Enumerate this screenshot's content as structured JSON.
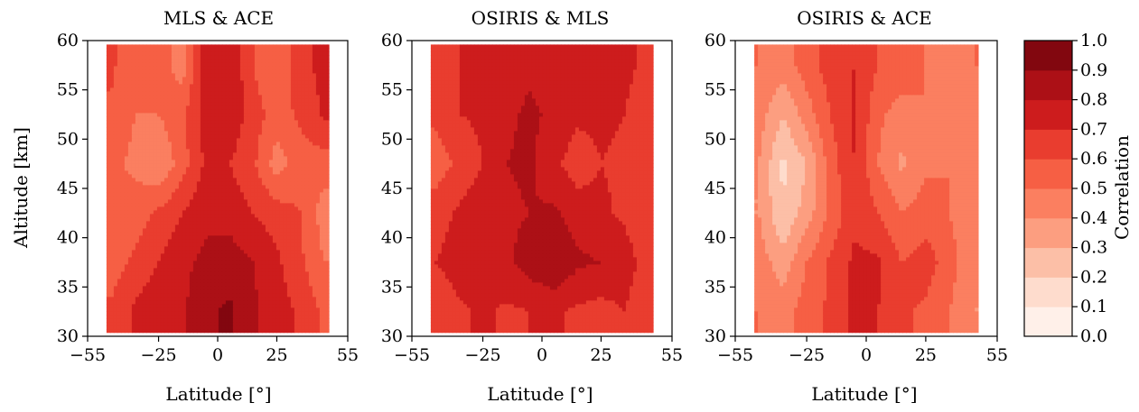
{
  "chart_data": [
    {
      "type": "heatmap",
      "title": "MLS & ACE",
      "xlabel": "Latitude [°]",
      "ylabel": "Altitude [km]",
      "xlim": [
        -55,
        55
      ],
      "ylim": [
        30,
        60
      ],
      "x_ticks": [
        "−55",
        "−25",
        "0",
        "25",
        "55"
      ],
      "y_ticks": [
        "30",
        "35",
        "40",
        "45",
        "50",
        "55",
        "60"
      ],
      "x": [
        -45,
        -35,
        -25,
        -15,
        -5,
        5,
        15,
        25,
        35,
        45
      ],
      "y": [
        32.5,
        37.5,
        42.5,
        47.5,
        52.5,
        57.5
      ],
      "z": [
        [
          0.62,
          0.72,
          0.78,
          0.78,
          0.88,
          0.92,
          0.82,
          0.75,
          0.68,
          0.58
        ],
        [
          0.55,
          0.62,
          0.7,
          0.78,
          0.82,
          0.85,
          0.8,
          0.72,
          0.62,
          0.5
        ],
        [
          0.5,
          0.55,
          0.62,
          0.7,
          0.78,
          0.76,
          0.7,
          0.65,
          0.6,
          0.45
        ],
        [
          0.52,
          0.48,
          0.4,
          0.55,
          0.72,
          0.7,
          0.62,
          0.45,
          0.55,
          0.55
        ],
        [
          0.58,
          0.5,
          0.5,
          0.58,
          0.75,
          0.78,
          0.65,
          0.55,
          0.62,
          0.72
        ],
        [
          0.62,
          0.52,
          0.55,
          0.45,
          0.75,
          0.8,
          0.6,
          0.5,
          0.68,
          0.72
        ]
      ]
    },
    {
      "type": "heatmap",
      "title": "OSIRIS & MLS",
      "xlabel": "Latitude [°]",
      "ylabel": "",
      "xlim": [
        -55,
        55
      ],
      "ylim": [
        30,
        60
      ],
      "x_ticks": [
        "−55",
        "−25",
        "0",
        "25",
        "55"
      ],
      "y_ticks": [
        "30",
        "35",
        "40",
        "45",
        "50",
        "55",
        "60"
      ],
      "x": [
        -45,
        -35,
        -25,
        -15,
        -5,
        5,
        15,
        25,
        35,
        45
      ],
      "y": [
        32.5,
        37.5,
        42.5,
        47.5,
        52.5,
        57.5
      ],
      "z": [
        [
          0.62,
          0.68,
          0.72,
          0.68,
          0.7,
          0.72,
          0.68,
          0.66,
          0.7,
          0.62
        ],
        [
          0.7,
          0.75,
          0.8,
          0.78,
          0.85,
          0.9,
          0.82,
          0.8,
          0.75,
          0.65
        ],
        [
          0.65,
          0.72,
          0.78,
          0.78,
          0.8,
          0.82,
          0.75,
          0.72,
          0.68,
          0.62
        ],
        [
          0.55,
          0.62,
          0.7,
          0.8,
          0.82,
          0.72,
          0.65,
          0.7,
          0.68,
          0.6
        ],
        [
          0.62,
          0.7,
          0.72,
          0.78,
          0.82,
          0.78,
          0.72,
          0.72,
          0.7,
          0.65
        ],
        [
          0.6,
          0.7,
          0.72,
          0.75,
          0.78,
          0.72,
          0.72,
          0.7,
          0.72,
          0.68
        ]
      ]
    },
    {
      "type": "heatmap",
      "title": "OSIRIS & ACE",
      "xlabel": "Latitude [°]",
      "ylabel": "",
      "xlim": [
        -55,
        55
      ],
      "ylim": [
        30,
        60
      ],
      "x_ticks": [
        "−55",
        "−25",
        "0",
        "25",
        "55"
      ],
      "y_ticks": [
        "30",
        "35",
        "40",
        "45",
        "50",
        "55",
        "60"
      ],
      "x": [
        -45,
        -35,
        -25,
        -15,
        -5,
        5,
        15,
        25,
        35,
        45
      ],
      "y": [
        32.5,
        37.5,
        42.5,
        47.5,
        52.5,
        57.5
      ],
      "z": [
        [
          0.5,
          0.45,
          0.55,
          0.62,
          0.72,
          0.7,
          0.62,
          0.58,
          0.5,
          0.4
        ],
        [
          0.45,
          0.35,
          0.5,
          0.62,
          0.72,
          0.72,
          0.6,
          0.65,
          0.55,
          0.4
        ],
        [
          0.4,
          0.2,
          0.35,
          0.52,
          0.68,
          0.6,
          0.5,
          0.55,
          0.5,
          0.4
        ],
        [
          0.4,
          0.18,
          0.3,
          0.55,
          0.7,
          0.5,
          0.38,
          0.48,
          0.5,
          0.45
        ],
        [
          0.45,
          0.3,
          0.45,
          0.6,
          0.72,
          0.52,
          0.45,
          0.5,
          0.45,
          0.42
        ],
        [
          0.5,
          0.45,
          0.55,
          0.65,
          0.7,
          0.6,
          0.58,
          0.5,
          0.45,
          0.5
        ]
      ]
    }
  ],
  "colorbar": {
    "label": "Correlation",
    "ticks": [
      "0.0",
      "0.1",
      "0.2",
      "0.3",
      "0.4",
      "0.5",
      "0.6",
      "0.7",
      "0.8",
      "0.9",
      "1.0"
    ],
    "levels": [
      0.0,
      0.1,
      0.2,
      0.3,
      0.4,
      0.5,
      0.6,
      0.7,
      0.8,
      0.9,
      1.0
    ],
    "colors": [
      "#fff0e9",
      "#fedccd",
      "#fcbfa7",
      "#fc9e80",
      "#fb7f60",
      "#f65f44",
      "#e93d2f",
      "#cd1c1d",
      "#ac1016",
      "#82070f"
    ]
  }
}
